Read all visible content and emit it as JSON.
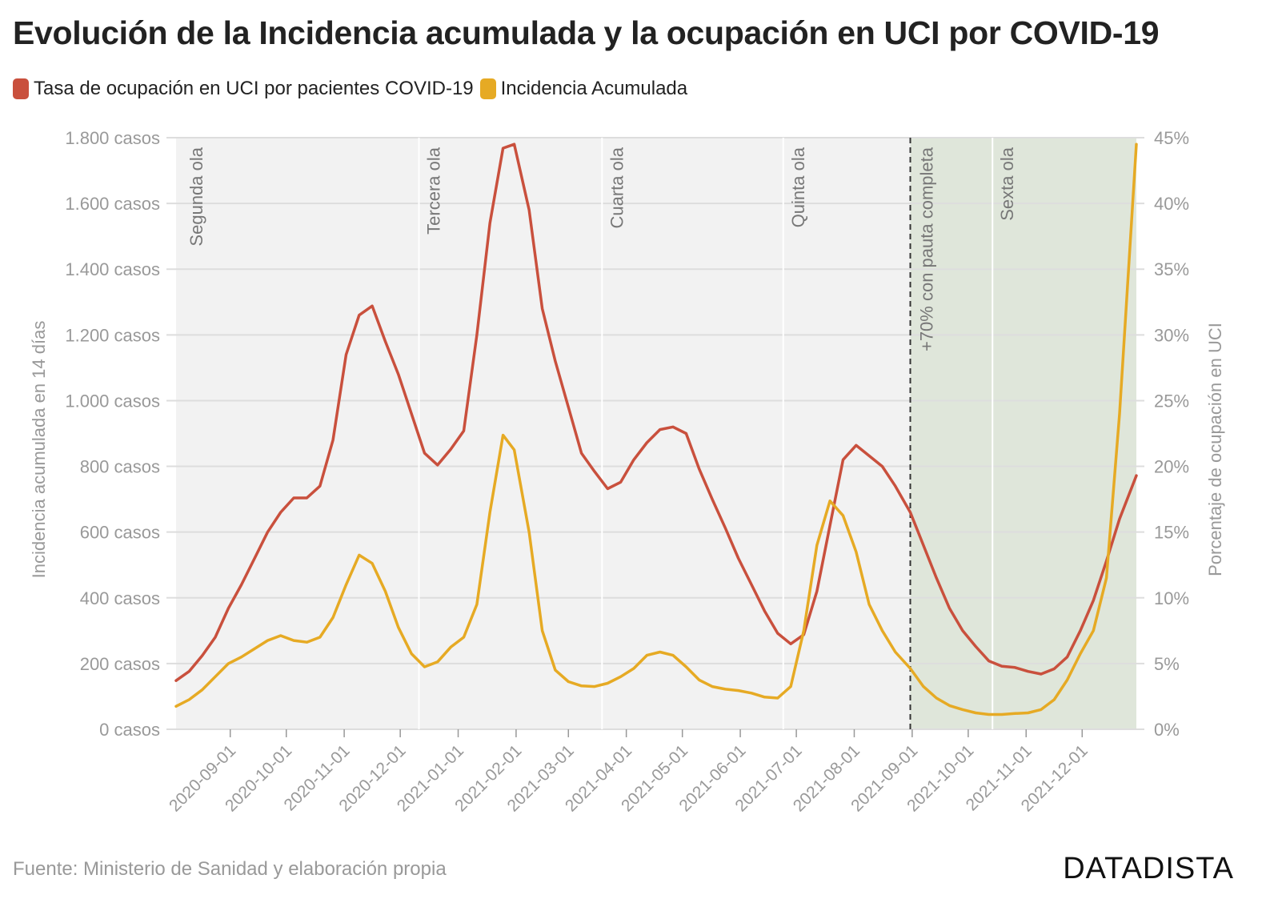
{
  "title": "Evolución de la Incidencia acumulada y la ocupación en UCI por COVID-19",
  "source": "Fuente: Ministerio de Sanidad y elaboración propia",
  "brand": "DATADISTA",
  "colors": {
    "uci": "#c9503d",
    "ia": "#e6aa24",
    "plot_bg": "#f2f2f2",
    "shade": "#dfe6da",
    "grid": "#dddddd",
    "axis_text": "#999999"
  },
  "chart_data": {
    "type": "line",
    "x_label": "",
    "y_left_label": "Incidencia acumulada en 14 días",
    "y_right_label": "Porcentaje de ocupación en UCI",
    "y_left_ticks": [
      "0 casos",
      "200 casos",
      "400 casos",
      "600 casos",
      "800 casos",
      "1.000 casos",
      "1.200 casos",
      "1.400 casos",
      "1.600 casos",
      "1.800 casos"
    ],
    "y_left_range": [
      0,
      1800
    ],
    "y_right_ticks": [
      "0%",
      "5%",
      "10%",
      "15%",
      "20%",
      "25%",
      "30%",
      "35%",
      "40%",
      "45%"
    ],
    "y_right_range": [
      0,
      45
    ],
    "x_range": [
      "2020-08-03",
      "2021-12-30"
    ],
    "x_ticks": [
      "2020-09-01",
      "2020-10-01",
      "2020-11-01",
      "2020-12-01",
      "2021-01-01",
      "2021-02-01",
      "2021-03-01",
      "2021-04-01",
      "2021-05-01",
      "2021-06-01",
      "2021-07-01",
      "2021-08-01",
      "2021-09-01",
      "2021-10-01",
      "2021-11-01",
      "2021-12-01"
    ],
    "grid": true,
    "legend_position": "top-left",
    "annotations": [
      {
        "date": "2020-08-06",
        "label": "Segunda ola"
      },
      {
        "date": "2020-12-11",
        "label": "Tercera ola"
      },
      {
        "date": "2021-03-19",
        "label": "Cuarta ola"
      },
      {
        "date": "2021-06-24",
        "label": "Quinta ola"
      },
      {
        "date": "2021-10-14",
        "label": "Sexta ola"
      }
    ],
    "milestone": {
      "date": "2021-08-31",
      "label": "+70% con pauta completa"
    },
    "shaded_range": [
      "2021-08-31",
      "2021-12-30"
    ],
    "series": [
      {
        "name": "Tasa de ocupación en UCI por pacientes COVID-19",
        "axis": "right",
        "points": [
          [
            "2020-08-03",
            3.7
          ],
          [
            "2020-08-10",
            4.4
          ],
          [
            "2020-08-17",
            5.6
          ],
          [
            "2020-08-24",
            7.0
          ],
          [
            "2020-08-31",
            9.2
          ],
          [
            "2020-09-07",
            11.0
          ],
          [
            "2020-09-14",
            13.0
          ],
          [
            "2020-09-21",
            15.0
          ],
          [
            "2020-09-28",
            16.5
          ],
          [
            "2020-10-05",
            17.6
          ],
          [
            "2020-10-12",
            17.6
          ],
          [
            "2020-10-19",
            18.5
          ],
          [
            "2020-10-26",
            22.0
          ],
          [
            "2020-11-02",
            28.5
          ],
          [
            "2020-11-09",
            31.5
          ],
          [
            "2020-11-16",
            32.2
          ],
          [
            "2020-11-23",
            29.5
          ],
          [
            "2020-11-30",
            27.0
          ],
          [
            "2020-12-07",
            24.0
          ],
          [
            "2020-12-14",
            21.0
          ],
          [
            "2020-12-21",
            20.1
          ],
          [
            "2020-12-28",
            21.3
          ],
          [
            "2021-01-04",
            22.7
          ],
          [
            "2021-01-11",
            30.0
          ],
          [
            "2021-01-18",
            38.5
          ],
          [
            "2021-01-25",
            44.2
          ],
          [
            "2021-01-31",
            44.5
          ],
          [
            "2021-02-08",
            39.5
          ],
          [
            "2021-02-15",
            32.0
          ],
          [
            "2021-02-22",
            28.0
          ],
          [
            "2021-03-01",
            24.5
          ],
          [
            "2021-03-08",
            21.0
          ],
          [
            "2021-03-15",
            19.6
          ],
          [
            "2021-03-22",
            18.3
          ],
          [
            "2021-03-29",
            18.8
          ],
          [
            "2021-04-05",
            20.5
          ],
          [
            "2021-04-12",
            21.8
          ],
          [
            "2021-04-19",
            22.8
          ],
          [
            "2021-04-26",
            23.0
          ],
          [
            "2021-05-03",
            22.5
          ],
          [
            "2021-05-10",
            19.8
          ],
          [
            "2021-05-17",
            17.5
          ],
          [
            "2021-05-24",
            15.3
          ],
          [
            "2021-05-31",
            13.0
          ],
          [
            "2021-06-07",
            11.0
          ],
          [
            "2021-06-14",
            9.0
          ],
          [
            "2021-06-21",
            7.3
          ],
          [
            "2021-06-28",
            6.5
          ],
          [
            "2021-07-05",
            7.2
          ],
          [
            "2021-07-12",
            10.5
          ],
          [
            "2021-07-19",
            15.5
          ],
          [
            "2021-07-26",
            20.5
          ],
          [
            "2021-08-02",
            21.6
          ],
          [
            "2021-08-09",
            20.8
          ],
          [
            "2021-08-16",
            20.0
          ],
          [
            "2021-08-23",
            18.5
          ],
          [
            "2021-08-31",
            16.5
          ],
          [
            "2021-09-07",
            14.0
          ],
          [
            "2021-09-14",
            11.5
          ],
          [
            "2021-09-21",
            9.2
          ],
          [
            "2021-09-28",
            7.5
          ],
          [
            "2021-10-05",
            6.3
          ],
          [
            "2021-10-12",
            5.2
          ],
          [
            "2021-10-19",
            4.8
          ],
          [
            "2021-10-26",
            4.7
          ],
          [
            "2021-11-02",
            4.4
          ],
          [
            "2021-11-09",
            4.2
          ],
          [
            "2021-11-16",
            4.6
          ],
          [
            "2021-11-23",
            5.5
          ],
          [
            "2021-11-30",
            7.5
          ],
          [
            "2021-12-07",
            9.8
          ],
          [
            "2021-12-14",
            12.8
          ],
          [
            "2021-12-21",
            16.0
          ],
          [
            "2021-12-30",
            19.3
          ]
        ]
      },
      {
        "name": "Incidencia Acumulada",
        "axis": "left",
        "points": [
          [
            "2020-08-03",
            70
          ],
          [
            "2020-08-10",
            90
          ],
          [
            "2020-08-17",
            120
          ],
          [
            "2020-08-24",
            160
          ],
          [
            "2020-08-31",
            200
          ],
          [
            "2020-09-07",
            220
          ],
          [
            "2020-09-14",
            245
          ],
          [
            "2020-09-21",
            270
          ],
          [
            "2020-09-28",
            285
          ],
          [
            "2020-10-05",
            270
          ],
          [
            "2020-10-12",
            265
          ],
          [
            "2020-10-19",
            280
          ],
          [
            "2020-10-26",
            340
          ],
          [
            "2020-11-02",
            440
          ],
          [
            "2020-11-09",
            530
          ],
          [
            "2020-11-16",
            505
          ],
          [
            "2020-11-23",
            420
          ],
          [
            "2020-11-30",
            310
          ],
          [
            "2020-12-07",
            230
          ],
          [
            "2020-12-14",
            190
          ],
          [
            "2020-12-21",
            205
          ],
          [
            "2020-12-28",
            250
          ],
          [
            "2021-01-04",
            280
          ],
          [
            "2021-01-11",
            380
          ],
          [
            "2021-01-18",
            660
          ],
          [
            "2021-01-25",
            895
          ],
          [
            "2021-01-31",
            850
          ],
          [
            "2021-02-08",
            600
          ],
          [
            "2021-02-15",
            300
          ],
          [
            "2021-02-22",
            180
          ],
          [
            "2021-03-01",
            145
          ],
          [
            "2021-03-08",
            132
          ],
          [
            "2021-03-15",
            130
          ],
          [
            "2021-03-22",
            140
          ],
          [
            "2021-03-29",
            160
          ],
          [
            "2021-04-05",
            185
          ],
          [
            "2021-04-12",
            225
          ],
          [
            "2021-04-19",
            235
          ],
          [
            "2021-04-26",
            225
          ],
          [
            "2021-05-03",
            190
          ],
          [
            "2021-05-10",
            150
          ],
          [
            "2021-05-17",
            130
          ],
          [
            "2021-05-24",
            122
          ],
          [
            "2021-05-31",
            118
          ],
          [
            "2021-06-07",
            110
          ],
          [
            "2021-06-14",
            98
          ],
          [
            "2021-06-21",
            95
          ],
          [
            "2021-06-28",
            130
          ],
          [
            "2021-07-05",
            300
          ],
          [
            "2021-07-12",
            560
          ],
          [
            "2021-07-19",
            695
          ],
          [
            "2021-07-26",
            650
          ],
          [
            "2021-08-02",
            540
          ],
          [
            "2021-08-09",
            380
          ],
          [
            "2021-08-16",
            300
          ],
          [
            "2021-08-23",
            235
          ],
          [
            "2021-08-31",
            185
          ],
          [
            "2021-09-07",
            130
          ],
          [
            "2021-09-14",
            95
          ],
          [
            "2021-09-21",
            72
          ],
          [
            "2021-09-28",
            60
          ],
          [
            "2021-10-05",
            50
          ],
          [
            "2021-10-12",
            45
          ],
          [
            "2021-10-19",
            45
          ],
          [
            "2021-10-26",
            48
          ],
          [
            "2021-11-02",
            50
          ],
          [
            "2021-11-09",
            60
          ],
          [
            "2021-11-16",
            90
          ],
          [
            "2021-11-23",
            150
          ],
          [
            "2021-11-30",
            230
          ],
          [
            "2021-12-07",
            300
          ],
          [
            "2021-12-14",
            460
          ],
          [
            "2021-12-21",
            960
          ],
          [
            "2021-12-30",
            1780
          ]
        ]
      }
    ]
  }
}
